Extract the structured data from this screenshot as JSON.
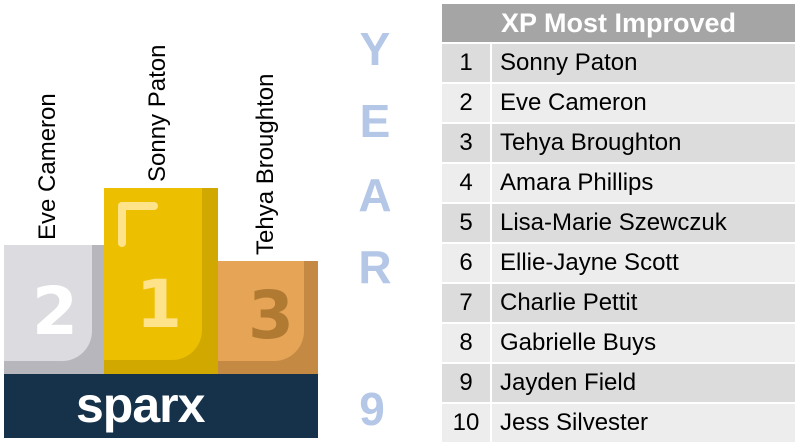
{
  "podium": {
    "first": {
      "name": "Sonny Paton",
      "place": "1"
    },
    "second": {
      "name": "Eve Cameron",
      "place": "2"
    },
    "third": {
      "name": "Tehya Broughton",
      "place": "3"
    },
    "logo": "sparx",
    "colors": {
      "gold": "#ecbf00",
      "silver": "#dcdce0",
      "bronze": "#e6a456",
      "base": "#16324a"
    }
  },
  "year": {
    "letters": [
      "Y",
      "E",
      "A",
      "R"
    ],
    "number": "9"
  },
  "table": {
    "title": "XP Most Improved",
    "rows": [
      {
        "rank": "1",
        "name": "Sonny Paton"
      },
      {
        "rank": "2",
        "name": "Eve Cameron"
      },
      {
        "rank": "3",
        "name": "Tehya Broughton"
      },
      {
        "rank": "4",
        "name": "Amara Phillips"
      },
      {
        "rank": "5",
        "name": "Lisa-Marie Szewczuk"
      },
      {
        "rank": "6",
        "name": "Ellie-Jayne Scott"
      },
      {
        "rank": "7",
        "name": "Charlie Pettit"
      },
      {
        "rank": "8",
        "name": "Gabrielle Buys"
      },
      {
        "rank": "9",
        "name": "Jayden Field"
      },
      {
        "rank": "10",
        "name": "Jess Silvester"
      }
    ]
  }
}
